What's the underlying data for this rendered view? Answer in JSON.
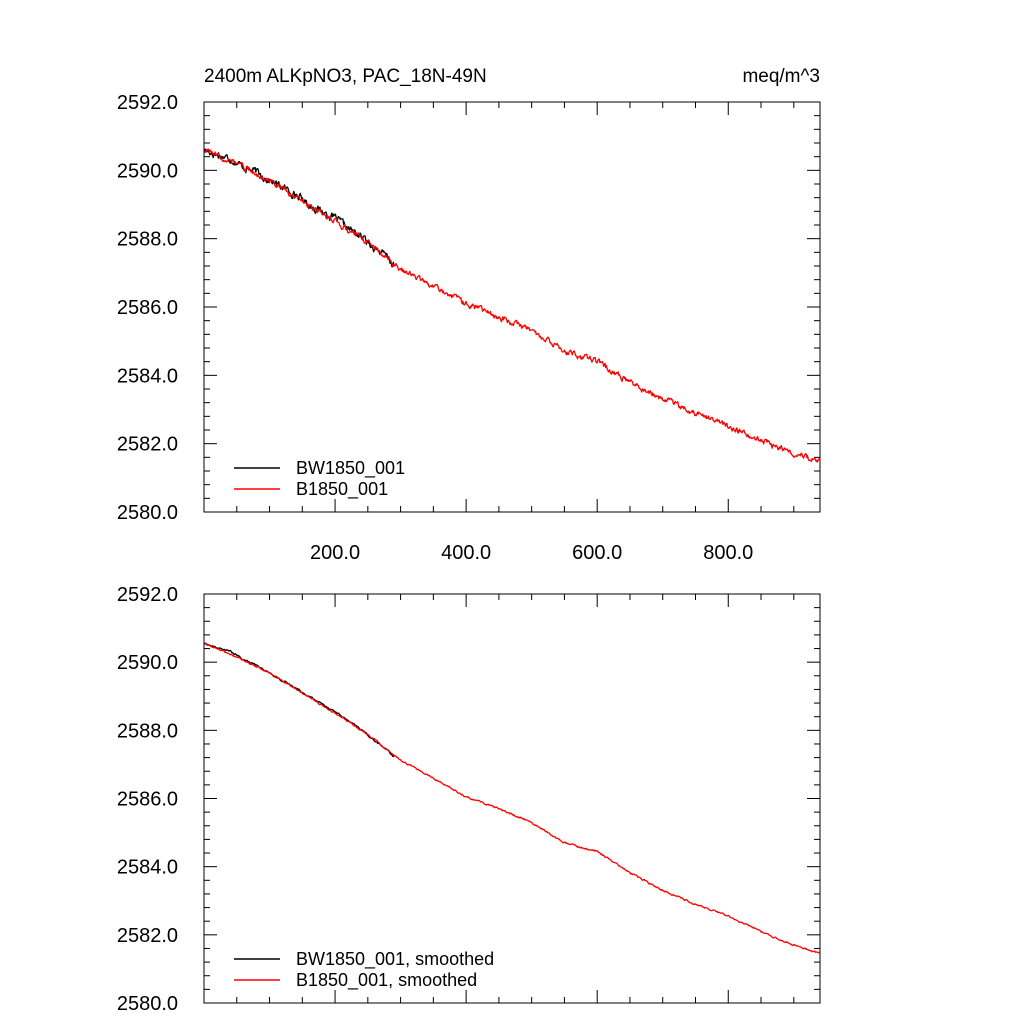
{
  "chart_data": [
    {
      "type": "line",
      "title": "2400m ALKpNO3, PAC_18N-49N",
      "units": "meq/m^3",
      "xlabel": "",
      "ylabel": "",
      "xlim": [
        0,
        940
      ],
      "ylim": [
        2580.0,
        2592.0
      ],
      "x_ticks": [
        "200.0",
        "400.0",
        "600.0",
        "800.0"
      ],
      "y_ticks": [
        "2580.0",
        "2582.0",
        "2584.0",
        "2586.0",
        "2588.0",
        "2590.0",
        "2592.0"
      ],
      "grid": false,
      "legend": "bottom-left",
      "series": [
        {
          "name": "BW1850_001",
          "color": "#000000",
          "noise": 0.09,
          "x": [
            1,
            20,
            40,
            60,
            80,
            100,
            120,
            140,
            160,
            180,
            200,
            220,
            240,
            260,
            280,
            290
          ],
          "values": [
            2590.6,
            2590.45,
            2590.35,
            2590.1,
            2589.95,
            2589.7,
            2589.5,
            2589.3,
            2589.0,
            2588.8,
            2588.6,
            2588.3,
            2588.05,
            2587.75,
            2587.45,
            2587.2
          ]
        },
        {
          "name": "B1850_001",
          "color": "#ff0000",
          "noise": 0.07,
          "x": [
            1,
            50,
            100,
            150,
            200,
            250,
            300,
            350,
            400,
            450,
            500,
            550,
            600,
            650,
            700,
            750,
            800,
            850,
            900,
            940
          ],
          "values": [
            2590.6,
            2590.2,
            2589.7,
            2589.1,
            2588.5,
            2587.9,
            2587.1,
            2586.6,
            2586.1,
            2585.7,
            2585.3,
            2584.7,
            2584.4,
            2583.8,
            2583.3,
            2582.9,
            2582.5,
            2582.1,
            2581.7,
            2581.5
          ]
        }
      ]
    },
    {
      "type": "line",
      "title": "",
      "units": "",
      "xlabel": "",
      "ylabel": "",
      "xlim": [
        0,
        940
      ],
      "ylim": [
        2580.0,
        2592.0
      ],
      "x_ticks": [],
      "y_ticks": [
        "2580.0",
        "2582.0",
        "2584.0",
        "2586.0",
        "2588.0",
        "2590.0",
        "2592.0"
      ],
      "grid": false,
      "legend": "bottom-left",
      "series": [
        {
          "name": "BW1850_001, smoothed",
          "color": "#000000",
          "noise": 0.02,
          "x": [
            1,
            20,
            40,
            60,
            80,
            100,
            120,
            140,
            160,
            180,
            200,
            220,
            240,
            260,
            280,
            290
          ],
          "values": [
            2590.55,
            2590.42,
            2590.32,
            2590.08,
            2589.9,
            2589.68,
            2589.45,
            2589.25,
            2589.0,
            2588.78,
            2588.55,
            2588.28,
            2588.02,
            2587.7,
            2587.42,
            2587.22
          ]
        },
        {
          "name": "B1850_001, smoothed",
          "color": "#ff0000",
          "noise": 0.02,
          "x": [
            1,
            50,
            100,
            150,
            200,
            250,
            300,
            350,
            400,
            450,
            500,
            550,
            600,
            650,
            700,
            750,
            800,
            850,
            900,
            940
          ],
          "values": [
            2590.55,
            2590.15,
            2589.68,
            2589.1,
            2588.5,
            2587.88,
            2587.12,
            2586.6,
            2586.05,
            2585.7,
            2585.3,
            2584.7,
            2584.45,
            2583.82,
            2583.3,
            2582.9,
            2582.55,
            2582.1,
            2581.7,
            2581.45
          ]
        }
      ]
    }
  ]
}
